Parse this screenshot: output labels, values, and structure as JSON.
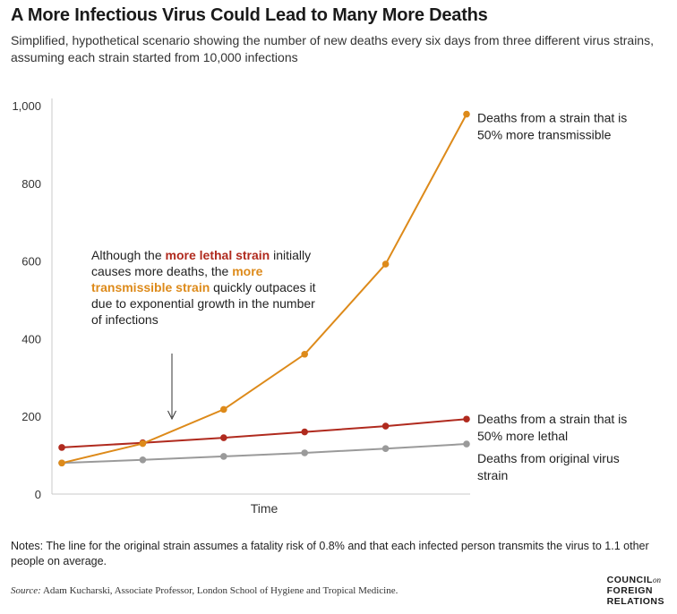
{
  "title": "A More Infectious Virus Could Lead to Many More Deaths",
  "subtitle": "Simplified, hypothetical scenario showing the number of new deaths every six days from three different virus strains, assuming each strain started from 10,000 infections",
  "annotation": {
    "part1": "Although the ",
    "red_phrase": "more lethal strain",
    "part2": " initially causes more deaths, the ",
    "orange_phrase": "more transmissible strain",
    "part3": " quickly outpaces it due to exponential growth in the number of infections"
  },
  "notes": "Notes: The line for the original strain assumes a fatality risk of 0.8% and that each infected person transmits the virus to 1.1 other people on average.",
  "source": {
    "label": "Source:",
    "text": " Adam Kucharski, Associate Professor, London School of Hygiene and Tropical Medicine."
  },
  "logo": {
    "line1": "COUNCIL",
    "on": "on",
    "line2": "FOREIGN",
    "line3": "RELATIONS"
  },
  "colors": {
    "transmissible": "#dd8a1a",
    "lethal": "#b02a1e",
    "original": "#9a9a9a"
  },
  "chart_data": {
    "type": "line",
    "xlabel": "Time",
    "ylabel": "",
    "ylim": [
      0,
      1000
    ],
    "yticks": [
      0,
      200,
      400,
      600,
      800,
      1000
    ],
    "ytick_labels": [
      "0",
      "200",
      "400",
      "600",
      "800",
      "1,000"
    ],
    "x": [
      0,
      1,
      2,
      3,
      4,
      5
    ],
    "grid": false,
    "series": [
      {
        "name": "Deaths from a strain that is 50% more transmissible",
        "label_lines": [
          "Deaths from a strain that is",
          "50% more transmissible"
        ],
        "color": "#dd8a1a",
        "values": [
          80,
          130,
          218,
          360,
          592,
          978
        ]
      },
      {
        "name": "Deaths from a strain that is 50% more lethal",
        "label_lines": [
          "Deaths from a strain that is",
          "50% more lethal"
        ],
        "color": "#b02a1e",
        "values": [
          120,
          132,
          145,
          160,
          175,
          193
        ]
      },
      {
        "name": "Deaths from original virus strain",
        "label_lines": [
          "Deaths from original virus",
          "strain"
        ],
        "color": "#9a9a9a",
        "values": [
          80,
          88,
          97,
          106,
          117,
          129
        ]
      }
    ]
  }
}
